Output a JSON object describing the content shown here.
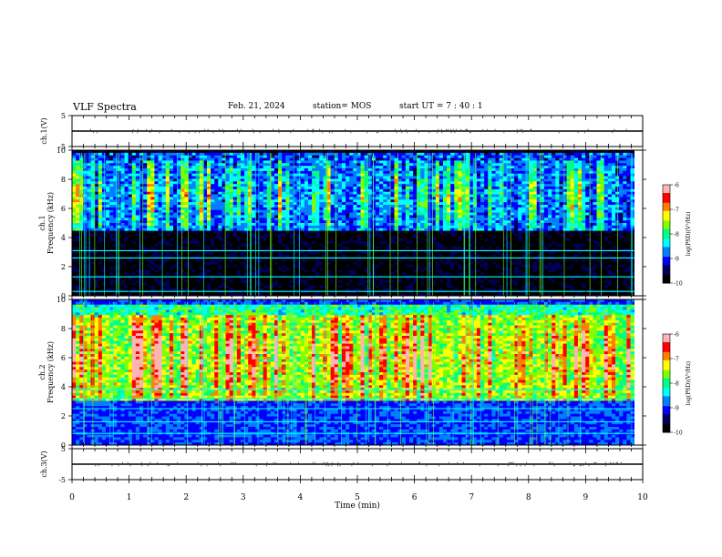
{
  "header": {
    "title": "VLF Spectra",
    "date": "Feb. 21, 2024",
    "station": "station= MOS",
    "start": "start UT = 7 : 40 : 1"
  },
  "colors": {
    "background": "#000033",
    "colormap": [
      "#000000",
      "#00005a",
      "#0000ff",
      "#0080ff",
      "#00ffff",
      "#00ff80",
      "#80ff00",
      "#ffff00",
      "#ff8000",
      "#ff0000",
      "#ffb4b4",
      "#ffffff"
    ]
  },
  "chart_data": [
    {
      "id": "ch1-voltage",
      "type": "line",
      "ylabel": "ch.1(V)",
      "ylim": [
        -5,
        5
      ],
      "yticks": [
        "5",
        "-5"
      ],
      "xlim": [
        0,
        10
      ],
      "x": [
        0,
        10
      ],
      "values": [
        0,
        0
      ]
    },
    {
      "id": "ch1-spectrogram",
      "type": "heatmap",
      "ylabel": "ch.1\nFrequency (kHz)",
      "ylim": [
        0,
        10
      ],
      "yticks": [
        "0",
        "2",
        "4",
        "6",
        "8",
        "10"
      ],
      "xlim": [
        0,
        10
      ],
      "x_extent_min": 9.85,
      "colorbar": {
        "label": "log(PSD)(V²/Hz)",
        "range": [
          -10,
          -6
        ],
        "ticks": [
          "-6",
          "-7",
          "-8",
          "-9",
          "-10"
        ]
      },
      "band_khz": [
        4.5,
        9.3
      ],
      "band_level": -8.2,
      "lines_khz": [
        0.3,
        1.3,
        2.6,
        3.1
      ],
      "noise_floor": -10
    },
    {
      "id": "ch2-spectrogram",
      "type": "heatmap",
      "ylabel": "ch.2\nFrequency (kHz)",
      "ylim": [
        0,
        10
      ],
      "yticks": [
        "0",
        "2",
        "4",
        "6",
        "8",
        "10"
      ],
      "xlim": [
        0,
        10
      ],
      "x_extent_min": 9.85,
      "colorbar": {
        "label": "log(PSD)(V²/Hz)",
        "range": [
          -10,
          -6
        ],
        "ticks": [
          "-6",
          "-7",
          "-8",
          "-9",
          "-10"
        ]
      },
      "band_khz": [
        3.0,
        9.0
      ],
      "band_level": -7.0,
      "lines_khz": [
        0.8,
        1.6,
        2.5,
        3.2,
        3.8
      ],
      "noise_floor": -9.2
    },
    {
      "id": "ch3-voltage",
      "type": "line",
      "ylabel": "ch.3(V)",
      "ylim": [
        -5,
        5
      ],
      "yticks": [
        "5",
        "-5"
      ],
      "xlabel": "Time (min)",
      "xlim": [
        0,
        10
      ],
      "xticks": [
        "0",
        "1",
        "2",
        "3",
        "4",
        "5",
        "6",
        "7",
        "8",
        "9",
        "10"
      ],
      "x": [
        0,
        10
      ],
      "values": [
        0,
        0
      ]
    }
  ]
}
